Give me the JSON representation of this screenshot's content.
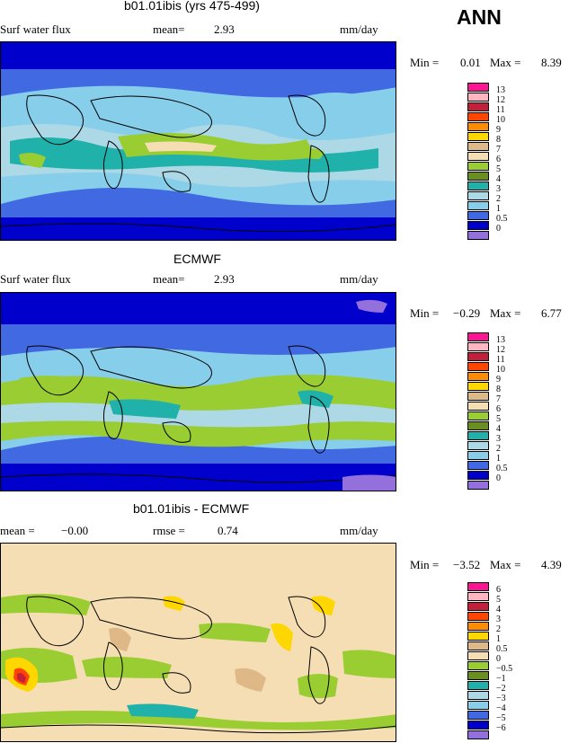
{
  "season": "ANN",
  "panels": [
    {
      "title": "b01.01ibis (yrs 475-499)",
      "left_label": "Surf water flux",
      "stat1_label": "mean=",
      "stat1_value": "2.93",
      "stat2_label": "",
      "stat2_value": "",
      "units": "mm/day",
      "min_label": "Min =",
      "min_value": "0.01",
      "max_label": "Max =",
      "max_value": "8.39",
      "legend_levels": [
        "13",
        "12",
        "11",
        "10",
        "9",
        "8",
        "7",
        "6",
        "5",
        "4",
        "3",
        "2",
        "1",
        "0.5",
        "0"
      ],
      "legend_colors": [
        "#ff1493",
        "#ffb6c1",
        "#c41e3a",
        "#ff4500",
        "#ff8c00",
        "#ffd700",
        "#deb887",
        "#f5deb3",
        "#9acd32",
        "#6b8e23",
        "#20b2aa",
        "#add8e6",
        "#87ceeb",
        "#4169e1",
        "#0000cd",
        "#9370db"
      ]
    },
    {
      "title": "ECMWF",
      "left_label": "Surf water flux",
      "stat1_label": "mean=",
      "stat1_value": "2.93",
      "stat2_label": "",
      "stat2_value": "",
      "units": "mm/day",
      "min_label": "Min =",
      "min_value": "−0.29",
      "max_label": "Max =",
      "max_value": "6.77",
      "legend_levels": [
        "13",
        "12",
        "11",
        "10",
        "9",
        "8",
        "7",
        "6",
        "5",
        "4",
        "3",
        "2",
        "1",
        "0.5",
        "0"
      ],
      "legend_colors": [
        "#ff1493",
        "#ffb6c1",
        "#c41e3a",
        "#ff4500",
        "#ff8c00",
        "#ffd700",
        "#deb887",
        "#f5deb3",
        "#9acd32",
        "#6b8e23",
        "#20b2aa",
        "#add8e6",
        "#87ceeb",
        "#4169e1",
        "#0000cd",
        "#9370db"
      ]
    },
    {
      "title": "b01.01ibis - ECMWF",
      "left_label": "",
      "stat1_label": "mean =",
      "stat1_value": "−0.00",
      "stat2_label": "rmse =",
      "stat2_value": "0.74",
      "units": "mm/day",
      "min_label": "Min =",
      "min_value": "−3.52",
      "max_label": "Max =",
      "max_value": "4.39",
      "legend_levels": [
        "6",
        "5",
        "4",
        "3",
        "2",
        "1",
        "0.5",
        "0",
        "−0.5",
        "−1",
        "−2",
        "−3",
        "−4",
        "−5",
        "−6"
      ],
      "legend_colors": [
        "#ff1493",
        "#ffb6c1",
        "#c41e3a",
        "#ff4500",
        "#ff8c00",
        "#ffd700",
        "#deb887",
        "#f5deb3",
        "#9acd32",
        "#6b8e23",
        "#20b2aa",
        "#add8e6",
        "#87ceeb",
        "#4169e1",
        "#0000cd",
        "#9370db"
      ]
    }
  ]
}
